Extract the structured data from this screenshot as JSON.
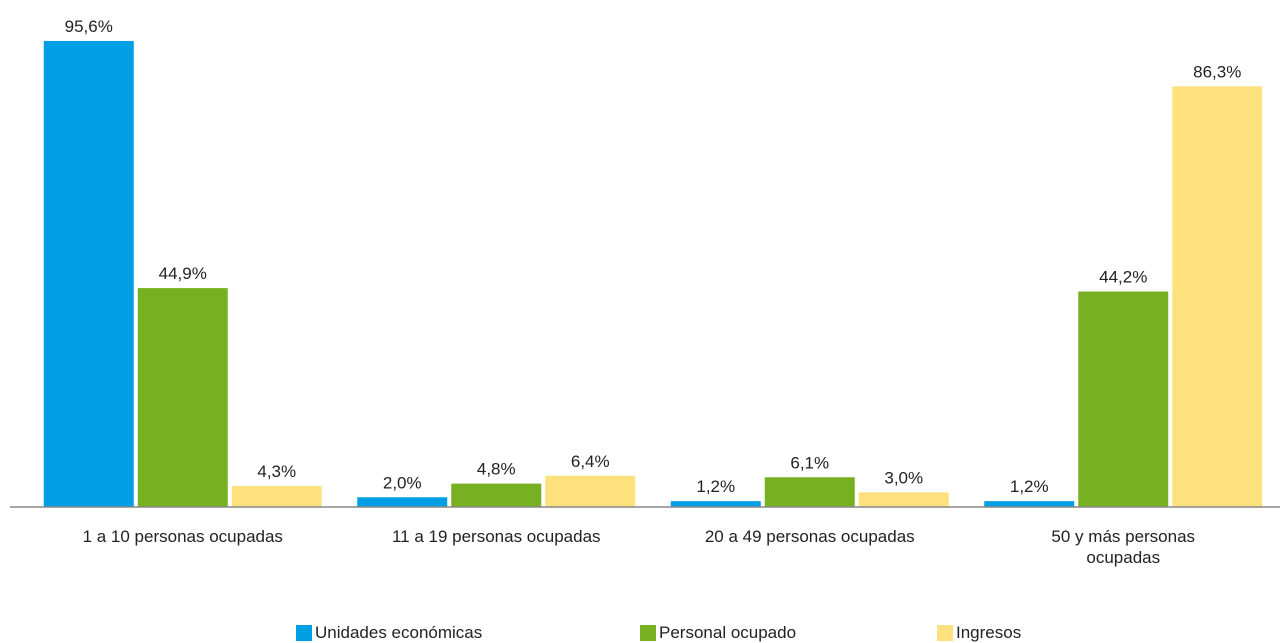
{
  "chart_data": {
    "type": "bar",
    "categories": [
      "1 a 10 personas ocupadas",
      "11 a 19 personas ocupadas",
      "20 a 49 personas ocupadas",
      "50 y más personas ocupadas"
    ],
    "series": [
      {
        "name": "Unidades económicas",
        "color": "#009fe3",
        "values": [
          95.6,
          2.0,
          1.2,
          1.2
        ],
        "value_labels": [
          "95,6%",
          "2,0%",
          "1,2%",
          "1,2%"
        ]
      },
      {
        "name": "Personal ocupado",
        "color": "#77b122",
        "values": [
          44.9,
          4.8,
          6.1,
          44.2
        ],
        "value_labels": [
          "44,9%",
          "4,8%",
          "6,1%",
          "44,2%"
        ]
      },
      {
        "name": "Ingresos",
        "color": "#fde17c",
        "values": [
          4.3,
          6.4,
          3.0,
          86.3
        ],
        "value_labels": [
          "4,3%",
          "6,4%",
          "3,0%",
          "86,3%"
        ]
      }
    ],
    "legend": "bottom"
  }
}
